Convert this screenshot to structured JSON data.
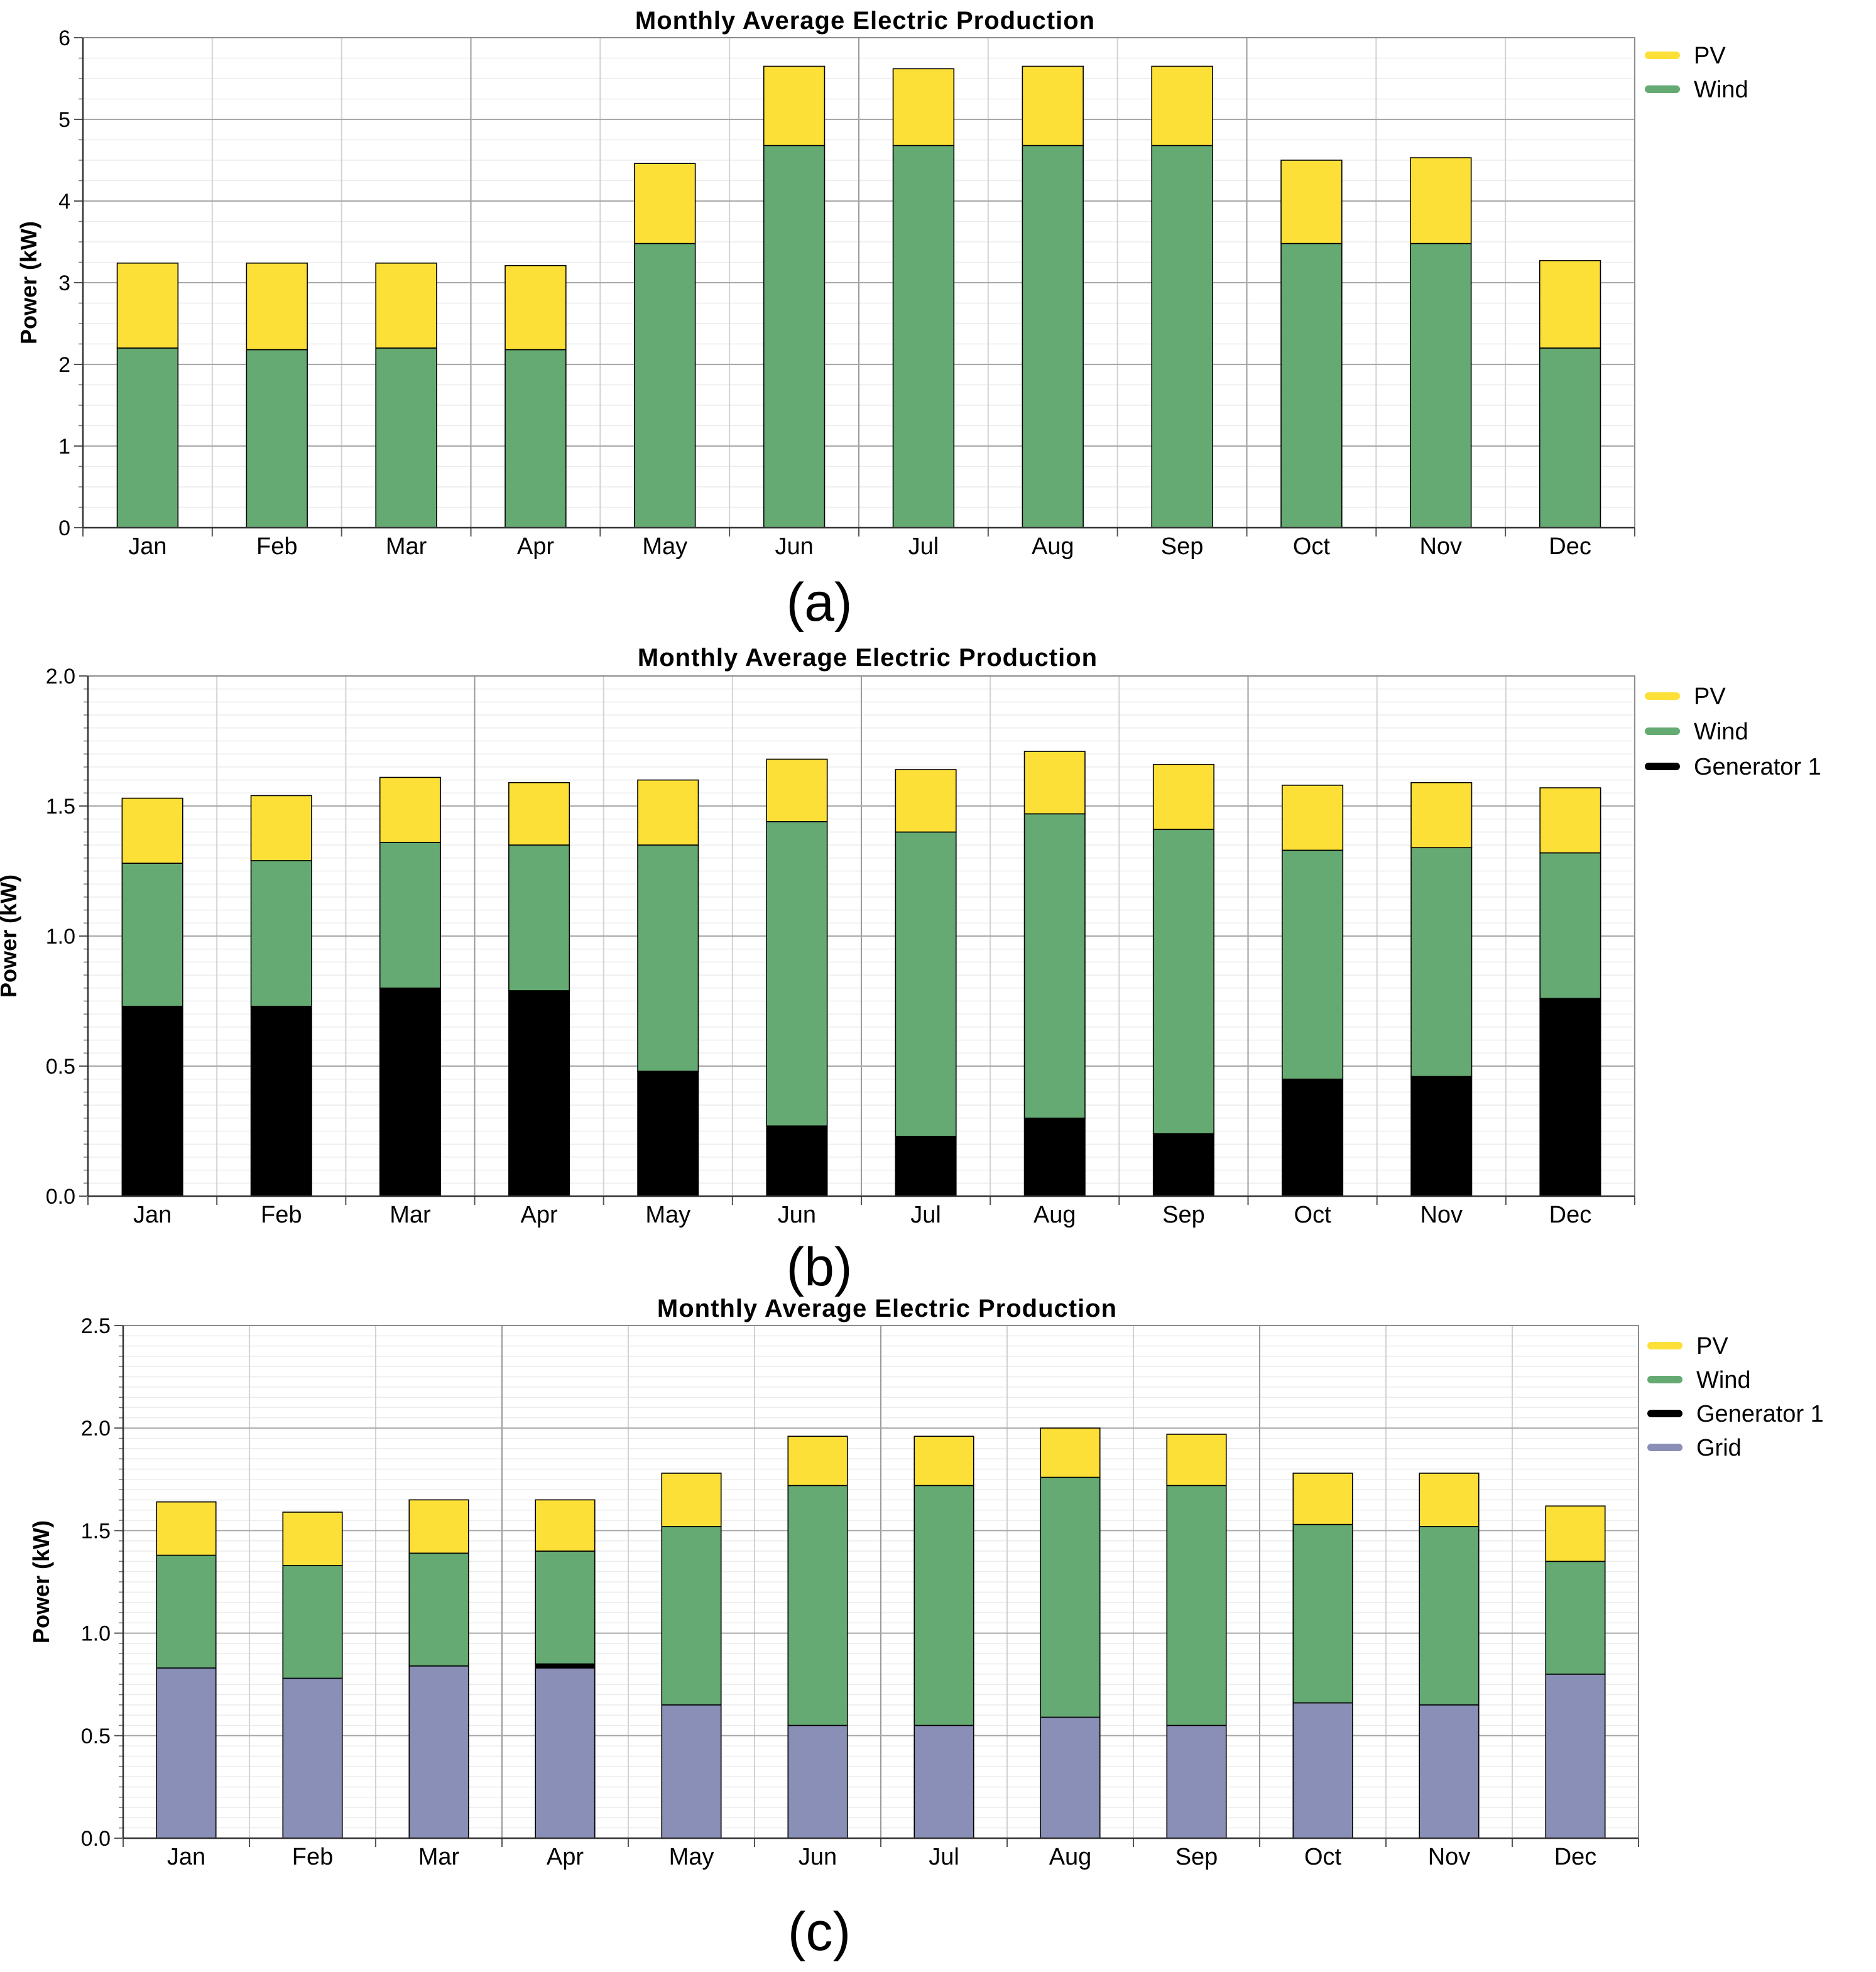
{
  "colors": {
    "PV": "#fde037",
    "Wind": "#65aa73",
    "Generator 1": "#000000",
    "Grid": "#8a8fb7"
  },
  "chart_data": [
    {
      "type": "bar",
      "stacked": true,
      "panel_label": "(a)",
      "title": "Monthly Average Electric Production",
      "xlabel": "",
      "ylabel": "Power (kW)",
      "ylim": [
        0,
        6
      ],
      "yticks": [
        "0",
        "1",
        "2",
        "3",
        "4",
        "5",
        "6"
      ],
      "legend_position": "right",
      "categories": [
        "Jan",
        "Feb",
        "Mar",
        "Apr",
        "May",
        "Jun",
        "Jul",
        "Aug",
        "Sep",
        "Oct",
        "Nov",
        "Dec"
      ],
      "series": [
        {
          "name": "Wind",
          "values": [
            2.2,
            2.18,
            2.2,
            2.18,
            3.48,
            4.68,
            4.68,
            4.68,
            4.68,
            3.48,
            3.48,
            2.2
          ]
        },
        {
          "name": "PV",
          "values": [
            1.04,
            1.06,
            1.04,
            1.03,
            0.98,
            0.97,
            0.94,
            0.97,
            0.97,
            1.02,
            1.05,
            1.07
          ]
        }
      ]
    },
    {
      "type": "bar",
      "stacked": true,
      "panel_label": "(b)",
      "title": "Monthly Average Electric Production",
      "xlabel": "",
      "ylabel": "Power (kW)",
      "ylim": [
        0,
        2
      ],
      "yticks": [
        "0.0",
        "0.5",
        "1.0",
        "1.5",
        "2.0"
      ],
      "legend_position": "right",
      "categories": [
        "Jan",
        "Feb",
        "Mar",
        "Apr",
        "May",
        "Jun",
        "Jul",
        "Aug",
        "Sep",
        "Oct",
        "Nov",
        "Dec"
      ],
      "series": [
        {
          "name": "Generator 1",
          "values": [
            0.73,
            0.73,
            0.8,
            0.79,
            0.48,
            0.27,
            0.23,
            0.3,
            0.24,
            0.45,
            0.46,
            0.76
          ]
        },
        {
          "name": "Wind",
          "values": [
            0.55,
            0.56,
            0.56,
            0.56,
            0.87,
            1.17,
            1.17,
            1.17,
            1.17,
            0.88,
            0.88,
            0.56
          ]
        },
        {
          "name": "PV",
          "values": [
            0.25,
            0.25,
            0.25,
            0.24,
            0.25,
            0.24,
            0.24,
            0.24,
            0.25,
            0.25,
            0.25,
            0.25
          ]
        }
      ]
    },
    {
      "type": "bar",
      "stacked": true,
      "panel_label": "(c)",
      "title": "Monthly Average Electric Production",
      "xlabel": "",
      "ylabel": "Power (kW)",
      "ylim": [
        0,
        2.5
      ],
      "yticks": [
        "0.0",
        "0.5",
        "1.0",
        "1.5",
        "2.0",
        "2.5"
      ],
      "legend_position": "right",
      "categories": [
        "Jan",
        "Feb",
        "Mar",
        "Apr",
        "May",
        "Jun",
        "Jul",
        "Aug",
        "Sep",
        "Oct",
        "Nov",
        "Dec"
      ],
      "series": [
        {
          "name": "Grid",
          "values": [
            0.83,
            0.78,
            0.84,
            0.83,
            0.65,
            0.55,
            0.55,
            0.59,
            0.55,
            0.66,
            0.65,
            0.8
          ]
        },
        {
          "name": "Generator 1",
          "values": [
            0,
            0,
            0,
            0.02,
            0,
            0,
            0,
            0,
            0,
            0,
            0,
            0
          ]
        },
        {
          "name": "Wind",
          "values": [
            0.55,
            0.55,
            0.55,
            0.55,
            0.87,
            1.17,
            1.17,
            1.17,
            1.17,
            0.87,
            0.87,
            0.55
          ]
        },
        {
          "name": "PV",
          "values": [
            0.26,
            0.26,
            0.26,
            0.25,
            0.26,
            0.24,
            0.24,
            0.24,
            0.25,
            0.25,
            0.26,
            0.27
          ]
        }
      ]
    }
  ]
}
